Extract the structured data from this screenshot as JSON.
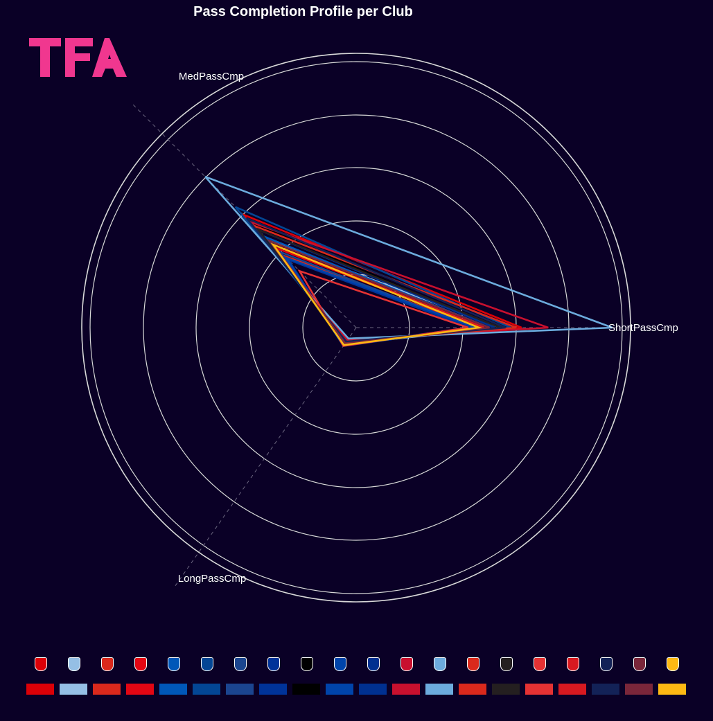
{
  "chart_data": {
    "type": "radar",
    "title": "Pass Completion Profile per Club",
    "axes": [
      "ShortPassCmp",
      "MedPassCmp",
      "LongPassCmp"
    ],
    "grid": true,
    "legend_position": "bottom",
    "series": [
      {
        "icon": "arsenal-crest-icon",
        "color": "#DB0007",
        "values": [
          310,
          300,
          30
        ]
      },
      {
        "icon": "aston-villa-crest-icon",
        "color": "#95BFE5",
        "values": [
          270,
          230,
          38
        ]
      },
      {
        "icon": "bournemouth-crest-icon",
        "color": "#DA291C",
        "values": [
          230,
          190,
          40
        ]
      },
      {
        "icon": "brentford-crest-icon",
        "color": "#E30613",
        "values": [
          240,
          210,
          35
        ]
      },
      {
        "icon": "brighton-crest-icon",
        "color": "#0057B8",
        "values": [
          250,
          240,
          36
        ]
      },
      {
        "icon": "chelsea-crest-icon",
        "color": "#034694",
        "values": [
          290,
          320,
          32
        ]
      },
      {
        "icon": "crystal-palace-crest-icon",
        "color": "#1B458F",
        "values": [
          220,
          200,
          38
        ]
      },
      {
        "icon": "everton-crest-icon",
        "color": "#003399",
        "values": [
          215,
          180,
          40
        ]
      },
      {
        "icon": "fulham-crest-icon",
        "color": "#000000",
        "values": [
          260,
          280,
          34
        ]
      },
      {
        "icon": "ipswich-crest-icon",
        "color": "#0044AA",
        "values": [
          225,
          185,
          42
        ]
      },
      {
        "icon": "leicester-crest-icon",
        "color": "#003090",
        "values": [
          260,
          260,
          33
        ]
      },
      {
        "icon": "liverpool-crest-icon",
        "color": "#C8102E",
        "values": [
          360,
          280,
          28
        ]
      },
      {
        "icon": "man-city-crest-icon",
        "color": "#6CABDD",
        "values": [
          480,
          400,
          25
        ]
      },
      {
        "icon": "man-united-crest-icon",
        "color": "#DA291C",
        "values": [
          300,
          270,
          32
        ]
      },
      {
        "icon": "newcastle-crest-icon",
        "color": "#241F20",
        "values": [
          270,
          260,
          34
        ]
      },
      {
        "icon": "nottingham-forest-crest-icon",
        "color": "#E53233",
        "values": [
          210,
          150,
          42
        ]
      },
      {
        "icon": "southampton-crest-icon",
        "color": "#D71920",
        "values": [
          240,
          220,
          36
        ]
      },
      {
        "icon": "tottenham-crest-icon",
        "color": "#132257",
        "values": [
          280,
          290,
          32
        ]
      },
      {
        "icon": "west-ham-crest-icon",
        "color": "#7A263A",
        "values": [
          250,
          230,
          36
        ]
      },
      {
        "icon": "wolves-crest-icon",
        "color": "#FDB913",
        "values": [
          230,
          220,
          40
        ]
      }
    ]
  },
  "logo_text": "TFA",
  "logo_color": "#F0378F"
}
